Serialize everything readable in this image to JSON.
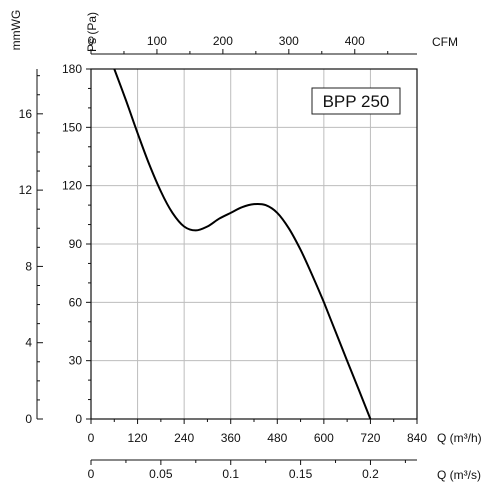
{
  "chart_data": {
    "type": "line",
    "title": "BPP 250",
    "x_axis_bottom": {
      "label": "Q (m³/h)",
      "ticks": [
        0,
        120,
        240,
        360,
        480,
        600,
        720,
        840
      ],
      "range": [
        0,
        840
      ]
    },
    "x_axis_bottom2": {
      "label": "Q (m³/s)",
      "ticks": [
        "0",
        "0.05",
        "0.1",
        "0.15",
        "0.2"
      ],
      "tick_values": [
        0,
        0.05,
        0.1,
        0.15,
        0.2
      ],
      "range": [
        0,
        0.2333
      ]
    },
    "x_axis_top": {
      "label": "CFM",
      "ticks": [
        0,
        100,
        200,
        300,
        400
      ],
      "range": [
        0,
        494.4
      ]
    },
    "y_axis_left": {
      "label": "Ps (Pa)",
      "ticks": [
        0,
        30,
        60,
        90,
        120,
        150,
        180
      ],
      "range": [
        0,
        180
      ]
    },
    "y_axis_outer": {
      "label": "mmWG",
      "ticks": [
        0,
        4,
        8,
        12,
        16
      ],
      "range": [
        0,
        18.35
      ]
    },
    "grid": true,
    "series": [
      {
        "x": [
          60,
          90,
          120,
          150,
          180,
          210,
          240,
          270,
          300,
          330,
          360,
          390,
          420,
          450,
          480,
          510,
          540,
          570,
          600,
          630,
          660,
          690,
          720
        ],
        "y": [
          180,
          164,
          147,
          131,
          117,
          106,
          99,
          97,
          99,
          103,
          106,
          109,
          110.5,
          110,
          106,
          98,
          87,
          74,
          60,
          45,
          30,
          15,
          0
        ]
      }
    ]
  }
}
